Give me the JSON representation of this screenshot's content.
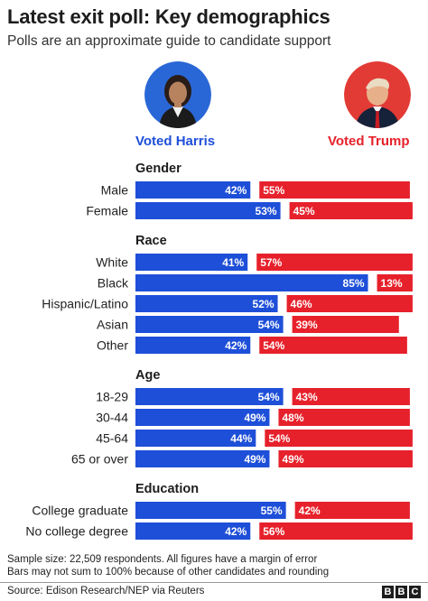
{
  "header": {
    "title": "Latest exit poll: Key demographics",
    "subtitle": "Polls are an approximate guide to candidate support"
  },
  "candidates": {
    "harris": {
      "label": "Voted Harris",
      "color": "#1e4fd8",
      "portrait": "kamala-harris-portrait"
    },
    "trump": {
      "label": "Voted Trump",
      "color": "#e6212b",
      "portrait": "donald-trump-portrait"
    }
  },
  "chart_data": {
    "type": "bar",
    "orientation": "horizontal-diverging",
    "series_names": [
      "Voted Harris",
      "Voted Trump"
    ],
    "groups": [
      {
        "name": "Gender",
        "rows": [
          {
            "label": "Male",
            "harris": 42,
            "trump": 55,
            "harris_label": "42%",
            "trump_label": "55%"
          },
          {
            "label": "Female",
            "harris": 53,
            "trump": 45,
            "harris_label": "53%",
            "trump_label": "45%"
          }
        ]
      },
      {
        "name": "Race",
        "rows": [
          {
            "label": "White",
            "harris": 41,
            "trump": 57,
            "harris_label": "41%",
            "trump_label": "57%"
          },
          {
            "label": "Black",
            "harris": 85,
            "trump": 13,
            "harris_label": "85%",
            "trump_label": "13%"
          },
          {
            "label": "Hispanic/Latino",
            "harris": 52,
            "trump": 46,
            "harris_label": "52%",
            "trump_label": "46%"
          },
          {
            "label": "Asian",
            "harris": 54,
            "trump": 39,
            "harris_label": "54%",
            "trump_label": "39%"
          },
          {
            "label": "Other",
            "harris": 42,
            "trump": 54,
            "harris_label": "42%",
            "trump_label": "54%"
          }
        ]
      },
      {
        "name": "Age",
        "rows": [
          {
            "label": "18-29",
            "harris": 54,
            "trump": 43,
            "harris_label": "54%",
            "trump_label": "43%"
          },
          {
            "label": "30-44",
            "harris": 49,
            "trump": 48,
            "harris_label": "49%",
            "trump_label": "48%"
          },
          {
            "label": "45-64",
            "harris": 44,
            "trump": 54,
            "harris_label": "44%",
            "trump_label": "54%"
          },
          {
            "label": "65 or over",
            "harris": 49,
            "trump": 49,
            "harris_label": "49%",
            "trump_label": "49%"
          }
        ]
      },
      {
        "name": "Education",
        "rows": [
          {
            "label": "College graduate",
            "harris": 55,
            "trump": 42,
            "harris_label": "55%",
            "trump_label": "42%"
          },
          {
            "label": "No college degree",
            "harris": 42,
            "trump": 56,
            "harris_label": "42%",
            "trump_label": "56%"
          }
        ]
      }
    ]
  },
  "footer": {
    "note1": "Sample size: 22,509 respondents. All figures have a margin of error",
    "note2": "Bars may not sum to 100% because of other candidates and rounding",
    "source": "Source: Edison Research/NEP via Reuters",
    "logo": [
      "B",
      "B",
      "C"
    ]
  }
}
